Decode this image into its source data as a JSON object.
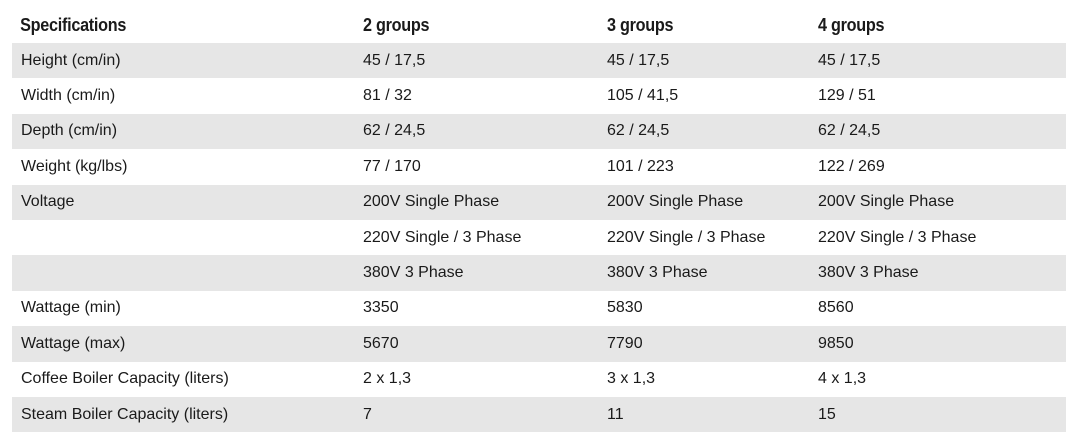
{
  "table": {
    "headers": [
      "Specifications",
      "2 groups",
      "3 groups",
      "4 groups"
    ],
    "rows": [
      [
        "Height (cm/in)",
        "45 / 17,5",
        "45 / 17,5",
        "45 / 17,5"
      ],
      [
        "Width (cm/in)",
        "81 / 32",
        "105 / 41,5",
        "129 / 51"
      ],
      [
        "Depth (cm/in)",
        "62 / 24,5",
        "62 / 24,5",
        "62 / 24,5"
      ],
      [
        "Weight (kg/lbs)",
        "77 / 170",
        "101 / 223",
        "122 / 269"
      ],
      [
        "Voltage",
        "200V Single Phase",
        "200V Single Phase",
        "200V Single Phase"
      ],
      [
        "",
        "220V Single / 3 Phase",
        "220V Single / 3 Phase",
        "220V Single / 3 Phase"
      ],
      [
        "",
        "380V 3 Phase",
        "380V 3 Phase",
        "380V 3 Phase"
      ],
      [
        "Wattage (min)",
        "3350",
        "5830",
        "8560"
      ],
      [
        "Wattage (max)",
        "5670",
        "7790",
        "9850"
      ],
      [
        "Coffee Boiler Capacity (liters)",
        "2 x 1,3",
        "3 x 1,3",
        "4 x 1,3"
      ],
      [
        "Steam Boiler Capacity (liters)",
        "7",
        "11",
        "15"
      ]
    ]
  },
  "colors": {
    "shaded_row": "#e6e6e6",
    "text": "#1a1a1a",
    "background": "#ffffff"
  }
}
